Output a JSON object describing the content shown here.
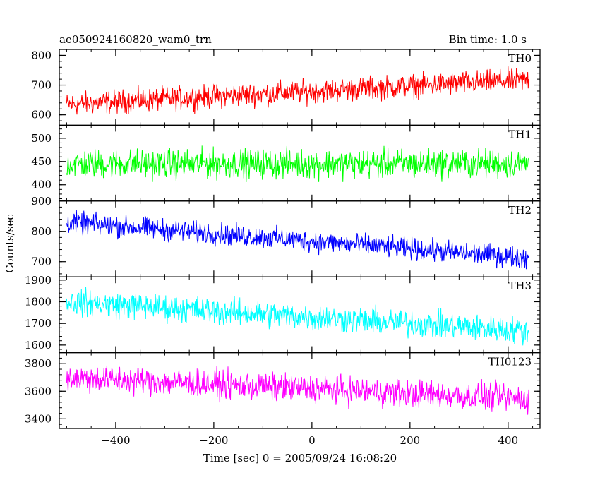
{
  "chart_data": {
    "type": "line",
    "title_left": "ae050924160820_wam0_trn",
    "title_right": "Bin time: 1.0 s",
    "xlabel": "Time [sec] 0 = 2005/09/24 16:08:20",
    "ylabel": "Counts/sec",
    "xlim": [
      -515,
      465
    ],
    "x_data_range": [
      -500,
      442
    ],
    "x_ticks": [
      -400,
      -200,
      0,
      200,
      400
    ],
    "x_tick_labels": [
      "−400",
      "−200",
      "0",
      "200",
      "400"
    ],
    "grid": false,
    "panels": [
      {
        "name": "TH0",
        "color": "#ff0000",
        "ylim": [
          565,
          820
        ],
        "y_ticks": [
          600,
          700,
          800
        ],
        "y_tick_labels": [
          "600",
          "700",
          "800"
        ],
        "trend_start": 635,
        "trend_end": 718,
        "noise_amplitude": 35
      },
      {
        "name": "TH1",
        "color": "#00ff00",
        "ylim": [
          365,
          528
        ],
        "y_ticks": [
          400,
          450,
          500
        ],
        "y_tick_labels": [
          "400",
          "450",
          "500"
        ],
        "trend_start": 445,
        "trend_end": 445,
        "noise_amplitude": 28
      },
      {
        "name": "TH2",
        "color": "#0000ff",
        "ylim": [
          650,
          900
        ],
        "y_ticks": [
          700,
          800,
          900
        ],
        "y_tick_labels": [
          "700",
          "800",
          "900"
        ],
        "trend_start": 830,
        "trend_end": 712,
        "noise_amplitude": 32
      },
      {
        "name": "TH3",
        "color": "#00ffff",
        "ylim": [
          1565,
          1915
        ],
        "y_ticks": [
          1600,
          1700,
          1800,
          1900
        ],
        "y_tick_labels": [
          "1600",
          "1700",
          "1800",
          "1900"
        ],
        "trend_start": 1800,
        "trend_end": 1665,
        "noise_amplitude": 55
      },
      {
        "name": "TH0123",
        "color": "#ff00ff",
        "ylim": [
          3330,
          3880
        ],
        "y_ticks": [
          3400,
          3600,
          3800
        ],
        "y_tick_labels": [
          "3400",
          "3600",
          "3800"
        ],
        "trend_start": 3700,
        "trend_end": 3545,
        "noise_amplitude": 90
      }
    ]
  }
}
